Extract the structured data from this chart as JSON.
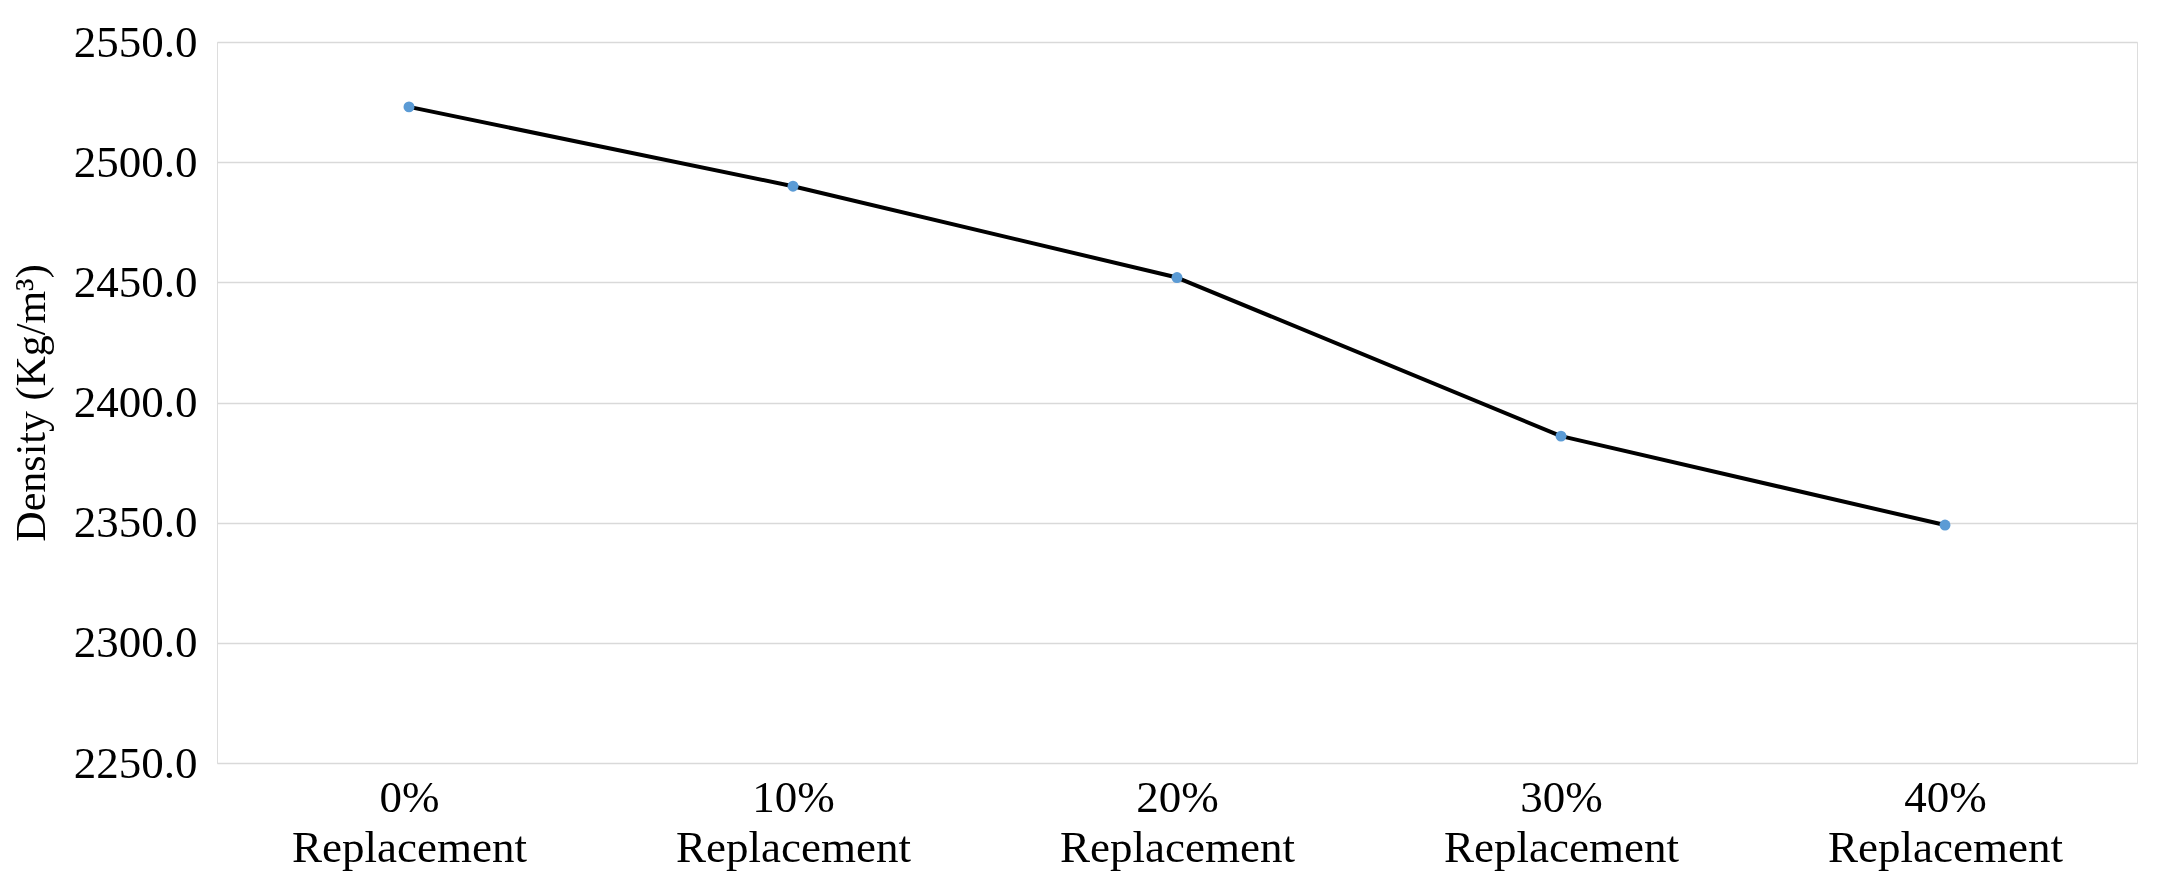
{
  "chart_data": {
    "type": "line",
    "ylabel": "Density (Kg/m³)",
    "categories": [
      "0% Replacement",
      "10% Replacement",
      "20% Replacement",
      "30% Replacement",
      "40% Replacement"
    ],
    "series": [
      {
        "color": "#000000",
        "colors": [
          "#5b9bd5",
          "#5b9bd5",
          "#5b9bd5",
          "#5b9bd5",
          "#5b9bd5"
        ],
        "values": [
          2523,
          2490,
          2452,
          2386,
          2349
        ]
      }
    ],
    "ylim": [
      2250,
      2550
    ],
    "yticks": [
      {
        "value": 2250,
        "label": "2250.0"
      },
      {
        "value": 2300,
        "label": "2300.0"
      },
      {
        "value": 2350,
        "label": "2350.0"
      },
      {
        "value": 2400,
        "label": "2400.0"
      },
      {
        "value": 2450,
        "label": "2450.0"
      },
      {
        "value": 2500,
        "label": "2500.0"
      },
      {
        "value": 2550,
        "label": "2550.0"
      }
    ],
    "grid": "y",
    "marker": "circle",
    "line_style": "solid"
  }
}
